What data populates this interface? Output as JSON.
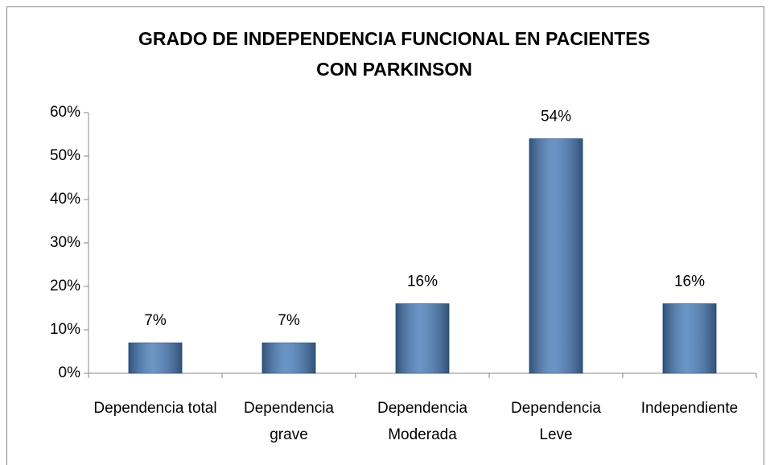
{
  "chart_data": {
    "type": "bar",
    "title": [
      "GRADO DE INDEPENDENCIA FUNCIONAL EN PACIENTES",
      "CON PARKINSON"
    ],
    "categories": [
      "Dependencia total",
      "Dependencia grave",
      "Dependencia Moderada",
      "Dependencia Leve",
      "Independiente"
    ],
    "values": [
      7,
      7,
      16,
      54,
      16
    ],
    "value_labels": [
      "7%",
      "7%",
      "16%",
      "54%",
      "16%"
    ],
    "color": "#4a7ebb",
    "ylim": [
      0,
      60
    ],
    "yticks": [
      {
        "value": 0,
        "label": "0%"
      },
      {
        "value": 10,
        "label": "10%"
      },
      {
        "value": 20,
        "label": "20%"
      },
      {
        "value": 30,
        "label": "30%"
      },
      {
        "value": 40,
        "label": "40%"
      },
      {
        "value": 50,
        "label": "50%"
      },
      {
        "value": 60,
        "label": "60%"
      }
    ],
    "grid": false
  }
}
